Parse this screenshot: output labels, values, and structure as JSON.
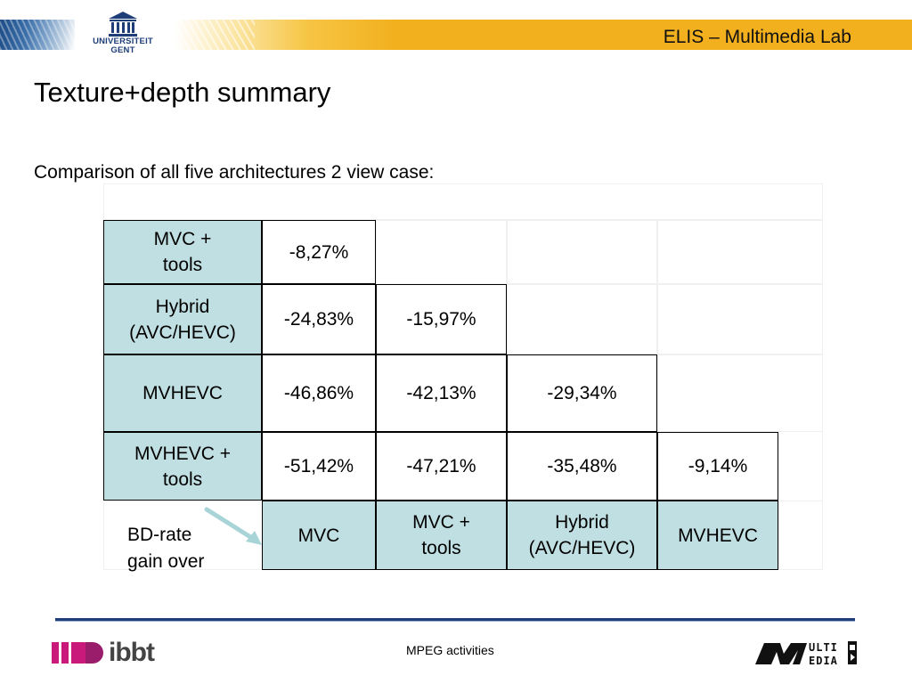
{
  "header": {
    "lab_title": "ELIS – Multimedia Lab",
    "university_name_line1": "UNIVERSITEIT",
    "university_name_line2": "GENT"
  },
  "slide": {
    "title": "Texture+depth summary",
    "subtitle": "Comparison of all five architectures 2 view case:"
  },
  "table": {
    "rows": [
      {
        "label": [
          "MVC +",
          "tools"
        ],
        "values": [
          "-8,27%"
        ]
      },
      {
        "label": [
          "Hybrid",
          "(AVC/HEVC)"
        ],
        "values": [
          "-24,83%",
          "-15,97%"
        ]
      },
      {
        "label": [
          "MVHEVC"
        ],
        "values": [
          "-46,86%",
          "-42,13%",
          "-29,34%"
        ]
      },
      {
        "label": [
          "MVHEVC +",
          "tools"
        ],
        "values": [
          "-51,42%",
          "-47,21%",
          "-35,48%",
          "-9,14%"
        ]
      }
    ],
    "columns": [
      [
        "MVC"
      ],
      [
        "MVC +",
        "tools"
      ],
      [
        "Hybrid",
        "(AVC/HEVC)"
      ],
      [
        "MVHEVC"
      ]
    ],
    "corner_label": [
      "BD-rate",
      "gain over"
    ]
  },
  "footer": {
    "text": "MPEG activities",
    "ibbt_logo_text": "ibbt",
    "multimedia_logo_text": "MULTI MEDIA"
  },
  "colors": {
    "label_cell_fill": "#bfdfe2",
    "header_bar": "#f2b01e",
    "footer_line": "#1f3e78"
  }
}
